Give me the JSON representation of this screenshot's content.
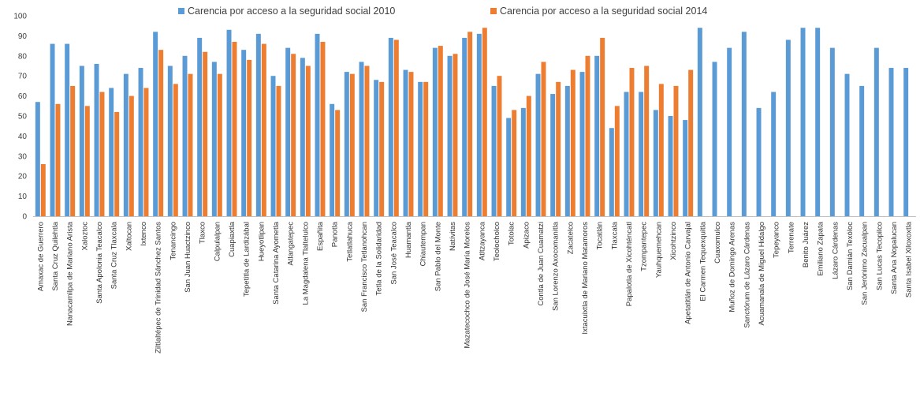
{
  "chart_data": {
    "type": "bar",
    "title": "",
    "xlabel": "",
    "ylabel": "",
    "ylim": [
      0,
      100
    ],
    "yticks": [
      0,
      10,
      20,
      30,
      40,
      50,
      60,
      70,
      80,
      90,
      100
    ],
    "grid": false,
    "legend_position": "top",
    "categories": [
      "Amaxac de Guerrero",
      "Santa Cruz Quilehtla",
      "Nanacamilpa de Mariano Arista",
      "Xaloztoc",
      "Santa Apolonia Teacalco",
      "Santa Cruz Tlaxcala",
      "Xaltocan",
      "Ixtenco",
      "Ziltlaltépec de Trinidad Sánchez Santos",
      "Tenancingo",
      "San Juan Huactzinco",
      "Tlaxco",
      "Calpulalpan",
      "Cuapiaxtla",
      "Tepetitla de Lardizábal",
      "Hueyotlipan",
      "Santa Catarina Ayometla",
      "Atlangatepec",
      "La Magdalena Tlaltelulco",
      "Españita",
      "Panotla",
      "Tetlatlahuca",
      "San Francisco Tetlanohcan",
      "Tetla de la Solidaridad",
      "San José Teacalco",
      "Huamantla",
      "Chiautempan",
      "San Pablo del Monte",
      "Natívitas",
      "Mazatecochco de José María Morelos",
      "Atltzayanca",
      "Teolocholco",
      "Totolac",
      "Apizaco",
      "Contla de Juan Cuamatzi",
      "San Lorenzo Axocomanitla",
      "Zacatelco",
      "Ixtacuixtla de Mariano Matamoros",
      "Tocatlán",
      "Tlaxcala",
      "Papalotla de Xicohténcatl",
      "Tzompantepec",
      "Yauhquemehcan",
      "Xicohtzinco",
      "Apetatitlán de Antonio Carvajal",
      "El Carmen Tequexquitla",
      "Cuaxomulco",
      "Muñoz de Domingo Arenas",
      "Sanctórum de Lázaro Cárdenas",
      "Acuamanala de Miguel Hidalgo",
      "Tepeyanco",
      "Terrenate",
      "Benito Juárez",
      "Emiliano Zapata",
      "Lázaro Cárdenas",
      "San Damián Texóloc",
      "San Jerónimo Zacualpan",
      "San Lucas Tecopilco",
      "Santa Ana Nopalucan",
      "Santa Isabel Xiloxoxtla"
    ],
    "series": [
      {
        "name": "Carencia por acceso a la seguridad social 2010",
        "color": "#5b9bd5",
        "values": [
          57,
          86,
          86,
          75,
          76,
          64,
          71,
          74,
          92,
          75,
          80,
          89,
          77,
          93,
          83,
          91,
          70,
          84,
          79,
          91,
          56,
          72,
          77,
          68,
          89,
          73,
          67,
          84,
          80,
          89,
          91,
          65,
          49,
          54,
          71,
          61,
          65,
          72,
          80,
          44,
          62,
          62,
          53,
          50,
          48,
          94,
          77,
          84,
          92,
          54,
          62,
          88,
          94,
          94,
          84,
          71,
          65,
          84,
          74,
          74
        ]
      },
      {
        "name": "Carencia por acceso a la seguridad social 2014",
        "color": "#ed7d31",
        "values": [
          26,
          56,
          65,
          55,
          62,
          52,
          60,
          64,
          83,
          66,
          71,
          82,
          71,
          87,
          78,
          86,
          65,
          81,
          75,
          87,
          53,
          71,
          75,
          67,
          88,
          72,
          67,
          85,
          81,
          92,
          94,
          70,
          53,
          60,
          77,
          67,
          73,
          80,
          89,
          55,
          74,
          75,
          66,
          65,
          73,
          null,
          null,
          null,
          null,
          null,
          null,
          null,
          null,
          null,
          null,
          null,
          null,
          null,
          null,
          null
        ]
      }
    ]
  }
}
